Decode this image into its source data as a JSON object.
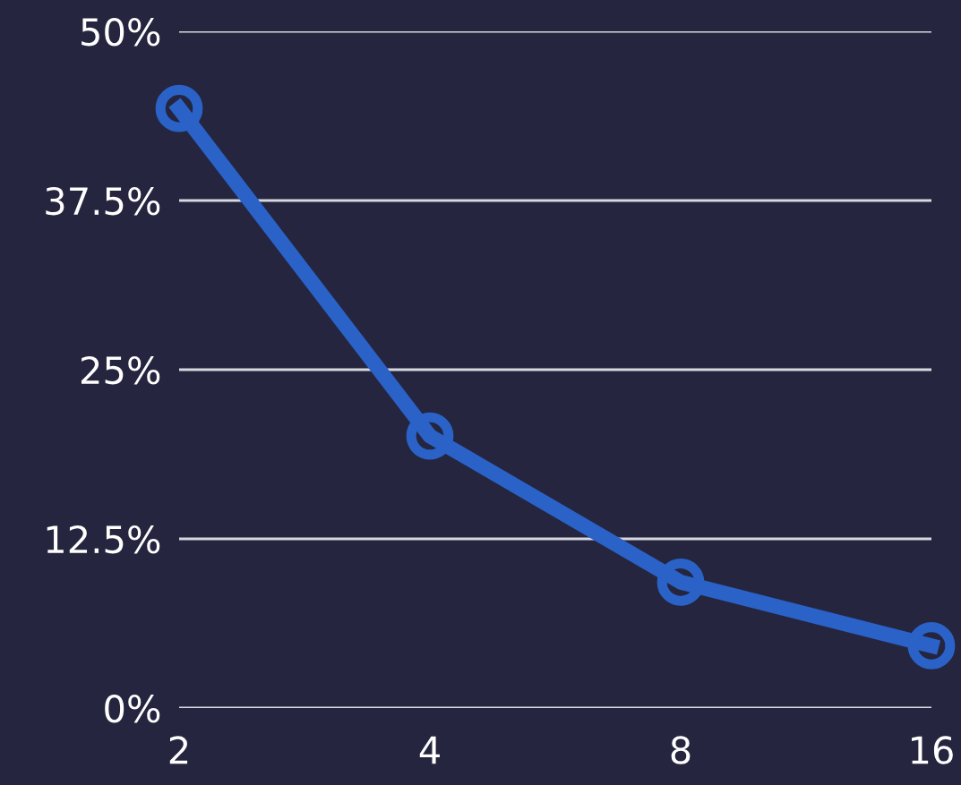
{
  "chart_data": {
    "type": "line",
    "categories": [
      "2",
      "4",
      "8",
      "16"
    ],
    "series": [
      {
        "color": "#2a62c8",
        "values": [
          44.3,
          20.1,
          9.3,
          4.6
        ]
      }
    ],
    "ylim": [
      0,
      50
    ],
    "yticks": [
      {
        "value": 0,
        "label": "0%"
      },
      {
        "value": 12.5,
        "label": "12.5%"
      },
      {
        "value": 25,
        "label": "25%"
      },
      {
        "value": 37.5,
        "label": "37.5%"
      },
      {
        "value": 50,
        "label": "50%"
      }
    ],
    "grid": "y",
    "marker": "circle",
    "line_style": "solid"
  }
}
